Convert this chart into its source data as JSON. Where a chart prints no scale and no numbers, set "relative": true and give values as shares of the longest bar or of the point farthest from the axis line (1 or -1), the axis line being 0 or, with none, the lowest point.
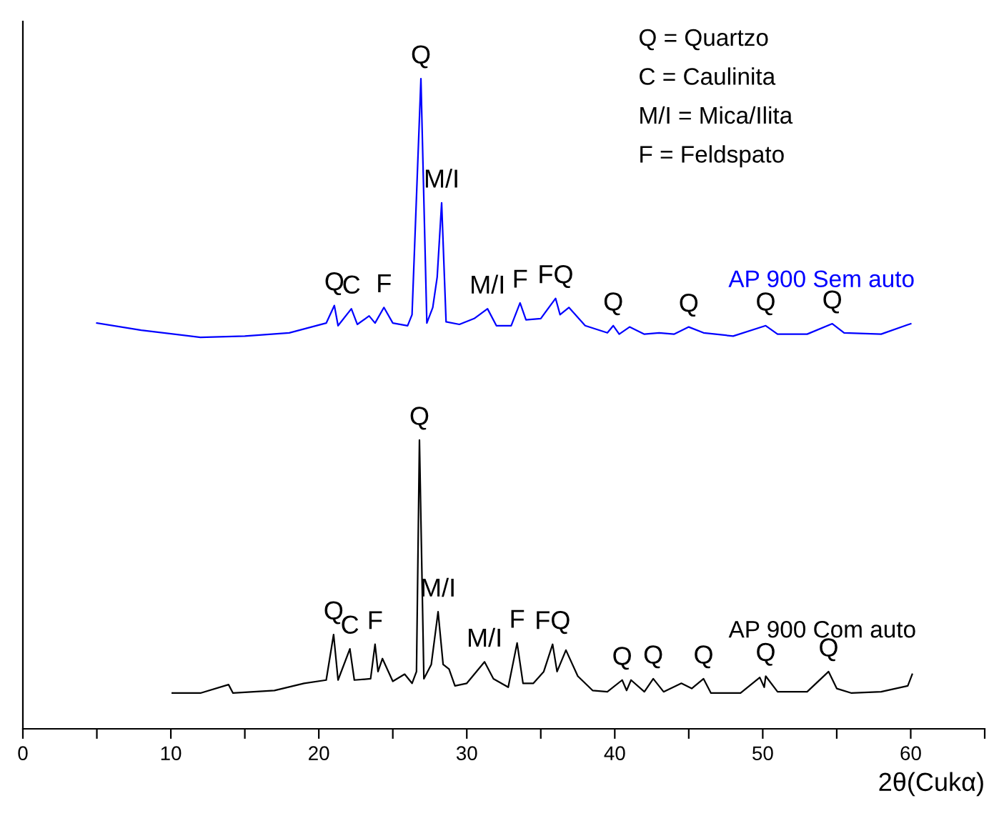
{
  "chart_data": {
    "type": "line",
    "relative": true,
    "xlabel": "2θ(Cukα)",
    "xlim": [
      0,
      65
    ],
    "xticks": [
      0,
      {
        "value": 5,
        "label": null
      },
      10,
      {
        "value": 15,
        "label": null
      },
      20,
      {
        "value": 25,
        "label": null
      },
      30,
      {
        "value": 35,
        "label": null
      },
      40,
      {
        "value": 45,
        "label": null
      },
      50,
      {
        "value": 55,
        "label": null
      },
      60,
      {
        "value": 65,
        "label": null
      }
    ],
    "grid": false,
    "legend": false,
    "marker": "none",
    "line_style": "solid",
    "series": [
      {
        "name": "AP 900 Sem auto",
        "color": "#0000ff",
        "x": [
          5,
          8,
          12,
          15,
          18,
          19.5,
          20.5,
          21.05,
          21.3,
          22.2,
          22.6,
          23.4,
          23.8,
          24.4,
          25,
          26,
          26.3,
          26.9,
          27.3,
          27.7,
          28.0,
          28.3,
          28.6,
          29.5,
          30.5,
          31.4,
          32,
          33,
          33.6,
          34,
          35,
          36.0,
          36.3,
          36.9,
          38,
          39.5,
          39.9,
          40.3,
          41,
          42,
          43,
          44,
          45.0,
          46,
          48,
          50.2,
          51,
          53,
          54.7,
          55.5,
          58,
          60
        ],
        "values": [
          0.624,
          0.613,
          0.602,
          0.604,
          0.609,
          0.618,
          0.624,
          0.651,
          0.62,
          0.646,
          0.622,
          0.635,
          0.624,
          0.648,
          0.624,
          0.62,
          0.637,
          1.0,
          0.624,
          0.648,
          0.695,
          0.809,
          0.626,
          0.622,
          0.631,
          0.646,
          0.62,
          0.62,
          0.655,
          0.629,
          0.631,
          0.662,
          0.637,
          0.648,
          0.62,
          0.609,
          0.62,
          0.607,
          0.618,
          0.607,
          0.609,
          0.607,
          0.618,
          0.609,
          0.604,
          0.62,
          0.607,
          0.607,
          0.623,
          0.609,
          0.607,
          0.623
        ]
      },
      {
        "name": "AP 900 Com auto",
        "color": "#000000",
        "x": [
          10.1,
          12,
          13.9,
          14.2,
          17,
          19,
          20.5,
          21.0,
          21.3,
          22.1,
          22.4,
          23.5,
          23.8,
          24.0,
          24.3,
          25,
          25.8,
          26.3,
          26.6,
          26.8,
          27.1,
          27.6,
          28.06,
          28.4,
          28.8,
          29.2,
          30,
          31.2,
          31.8,
          32.8,
          33.4,
          33.8,
          34.5,
          35.2,
          35.8,
          36.1,
          36.7,
          37.5,
          38.5,
          39.5,
          40.5,
          40.8,
          41.1,
          42,
          42.6,
          43.3,
          44.5,
          45.2,
          46.0,
          46.5,
          48.5,
          49.8,
          50.1,
          50.2,
          51,
          53,
          54.45,
          55,
          56,
          58,
          59.8,
          60.1
        ],
        "values": [
          0.055,
          0.055,
          0.068,
          0.055,
          0.059,
          0.07,
          0.075,
          0.145,
          0.075,
          0.123,
          0.075,
          0.077,
          0.13,
          0.088,
          0.108,
          0.073,
          0.084,
          0.07,
          0.088,
          0.444,
          0.077,
          0.099,
          0.18,
          0.099,
          0.092,
          0.066,
          0.07,
          0.103,
          0.077,
          0.064,
          0.132,
          0.07,
          0.07,
          0.088,
          0.13,
          0.088,
          0.121,
          0.081,
          0.059,
          0.057,
          0.075,
          0.059,
          0.075,
          0.057,
          0.077,
          0.057,
          0.07,
          0.062,
          0.077,
          0.055,
          0.055,
          0.079,
          0.064,
          0.081,
          0.057,
          0.057,
          0.088,
          0.062,
          0.055,
          0.057,
          0.066,
          0.084
        ]
      }
    ],
    "annotations": [
      "Q = Quartzo",
      "C = Caulinita",
      "M/I = Mica/Ilita",
      "F = Feldspato",
      {
        "text": "Q",
        "x": 26.9,
        "y": 1.0
      },
      {
        "text": "M/I",
        "x": 28.3,
        "y": 0.809
      },
      {
        "text": "Q",
        "x": 21.05,
        "y": 0.651
      },
      {
        "text": "C",
        "x": 22.2,
        "y": 0.646
      },
      {
        "text": "F",
        "x": 24.4,
        "y": 0.648
      },
      {
        "text": "M/I",
        "x": 31.4,
        "y": 0.646
      },
      {
        "text": "F",
        "x": 33.6,
        "y": 0.655
      },
      {
        "text": "FQ",
        "x": 36.0,
        "y": 0.662
      },
      {
        "text": "Q",
        "x": 39.9,
        "y": 0.62
      },
      {
        "text": "Q",
        "x": 45.0,
        "y": 0.618
      },
      {
        "text": "Q",
        "x": 50.2,
        "y": 0.62
      },
      {
        "text": "Q",
        "x": 54.7,
        "y": 0.623
      },
      {
        "text": "Q",
        "x": 26.8,
        "y": 0.444
      },
      {
        "text": "M/I",
        "x": 28.06,
        "y": 0.18
      },
      {
        "text": "Q",
        "x": 21.0,
        "y": 0.145
      },
      {
        "text": "C",
        "x": 22.1,
        "y": 0.123
      },
      {
        "text": "F",
        "x": 23.8,
        "y": 0.13
      },
      {
        "text": "M/I",
        "x": 31.2,
        "y": 0.103
      },
      {
        "text": "F",
        "x": 33.4,
        "y": 0.132
      },
      {
        "text": "FQ",
        "x": 35.8,
        "y": 0.13
      },
      {
        "text": "Q",
        "x": 40.5,
        "y": 0.075
      },
      {
        "text": "Q",
        "x": 42.6,
        "y": 0.077
      },
      {
        "text": "Q",
        "x": 46.0,
        "y": 0.077
      },
      {
        "text": "Q",
        "x": 50.2,
        "y": 0.081
      },
      {
        "text": "Q",
        "x": 54.45,
        "y": 0.088
      }
    ]
  }
}
